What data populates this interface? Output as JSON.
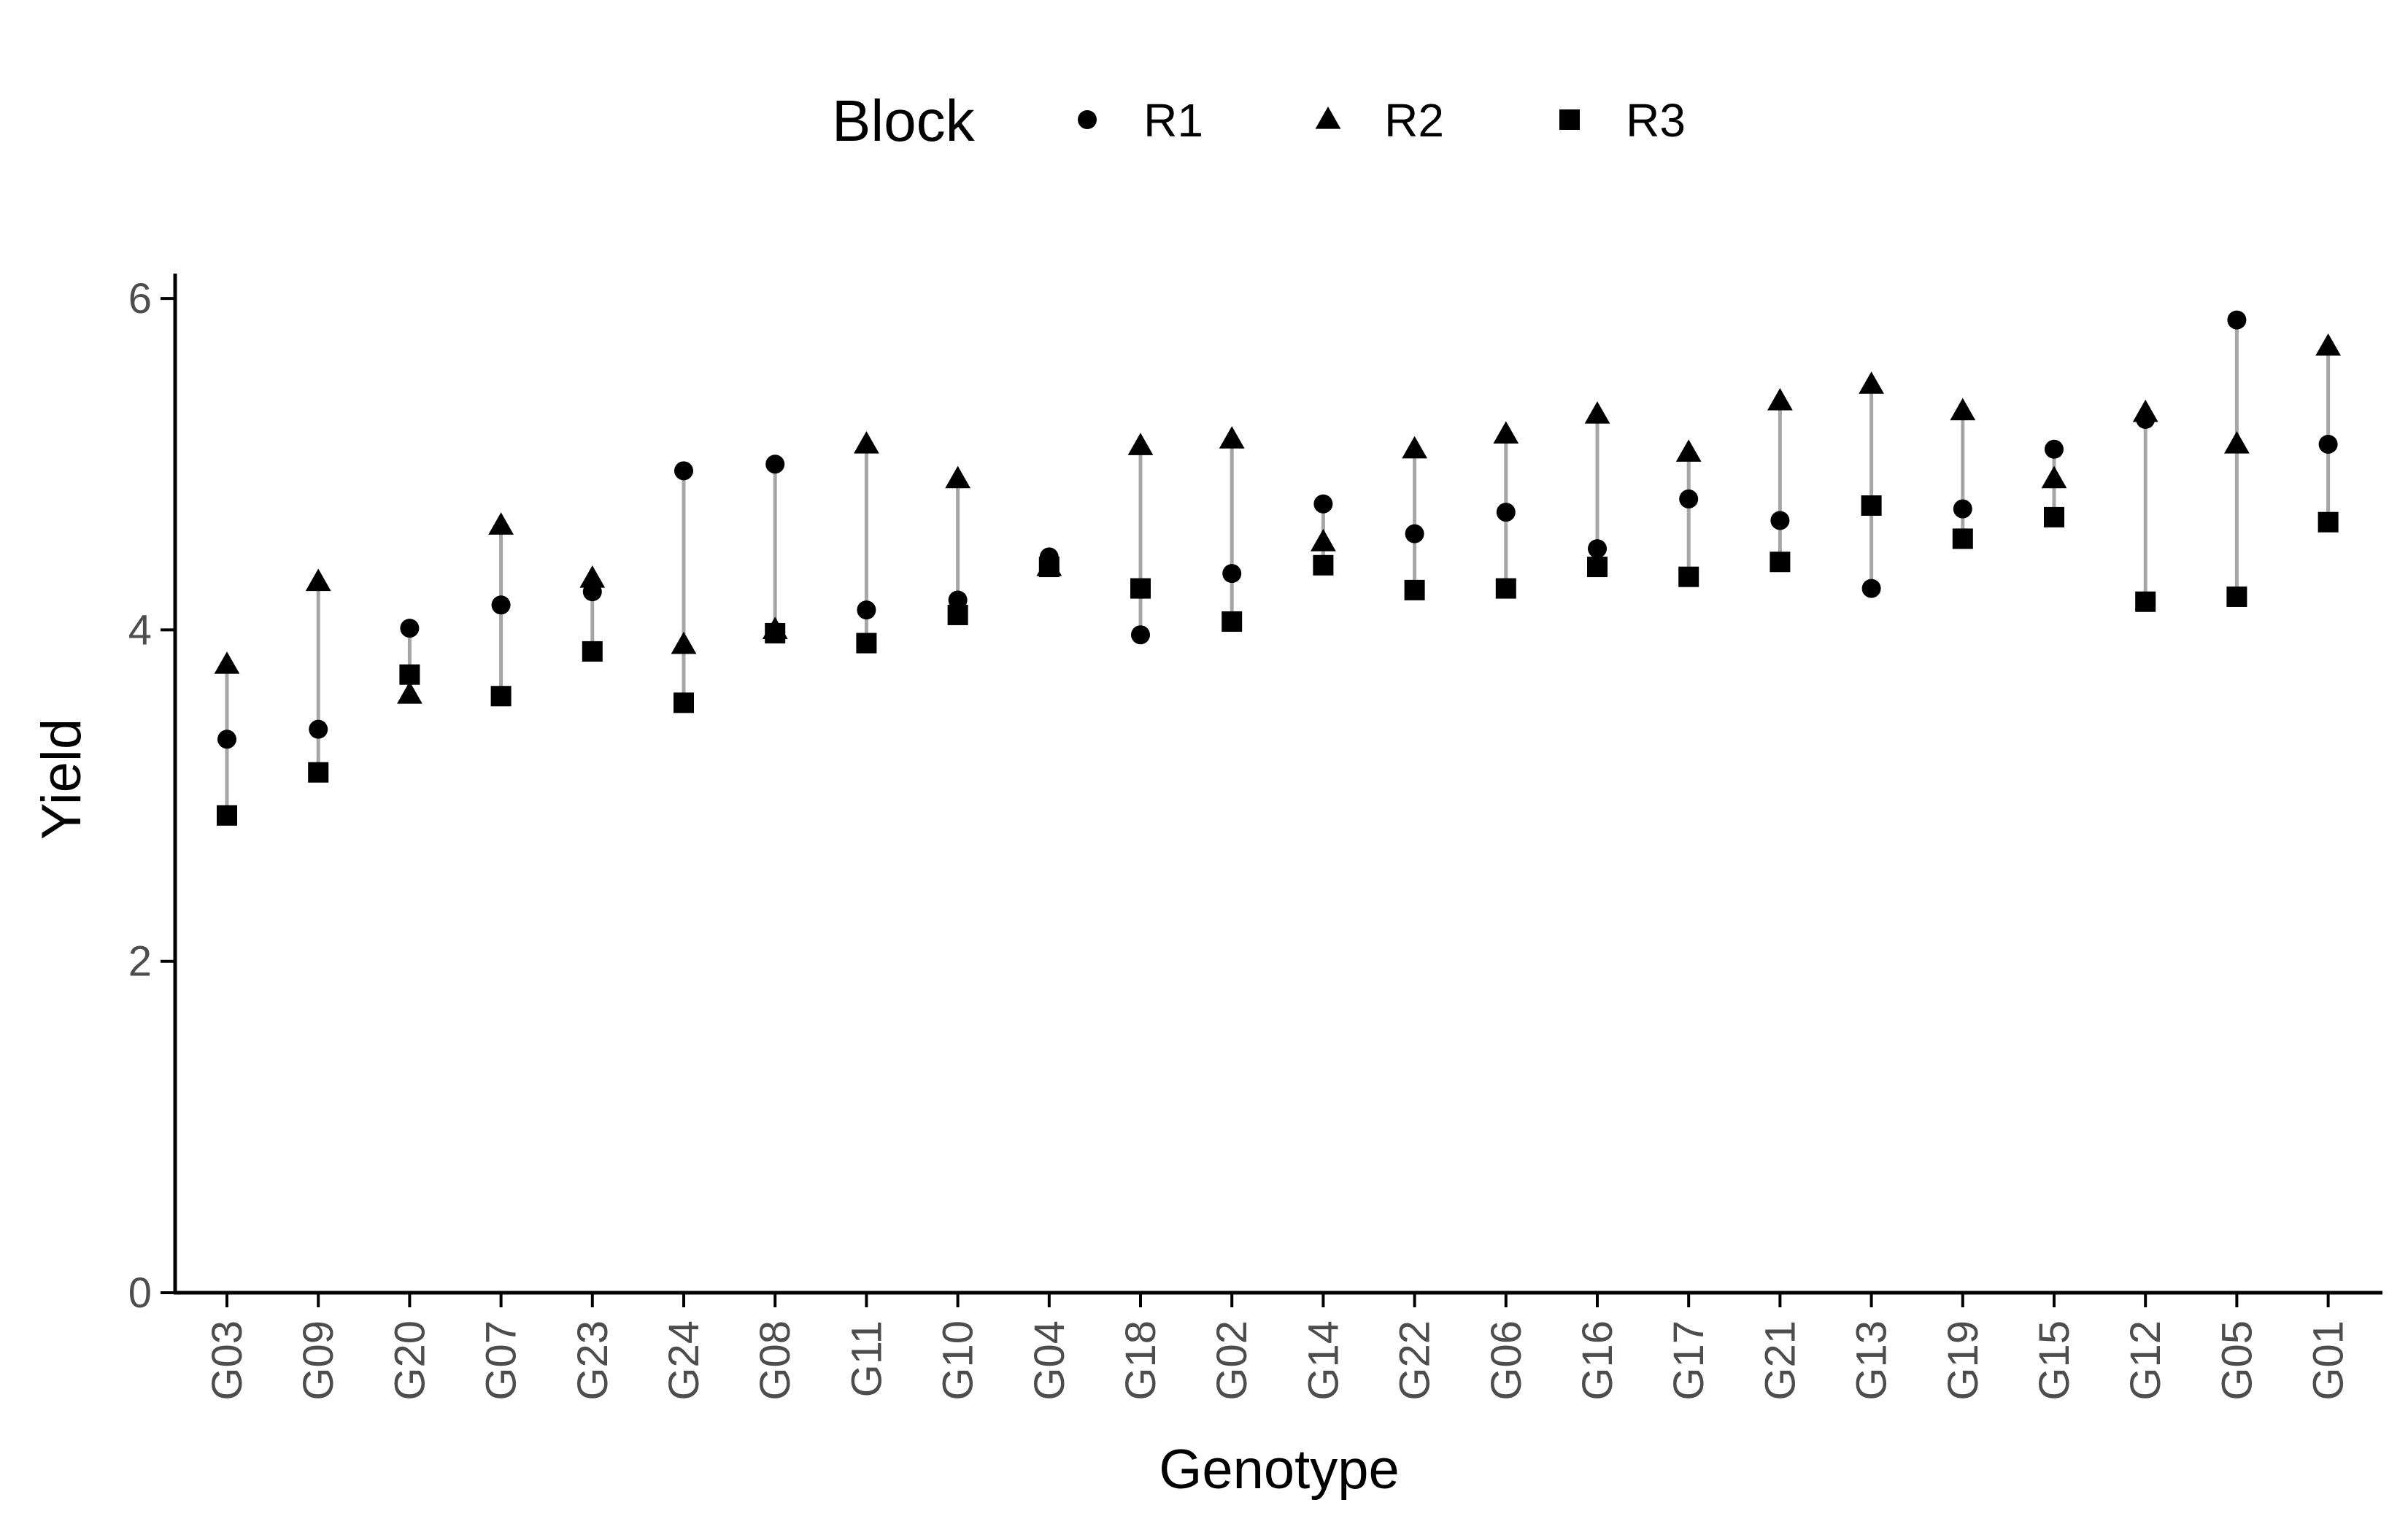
{
  "chart_data": {
    "type": "scatter",
    "xlabel": "Genotype",
    "ylabel": "Yield",
    "ylim": [
      0,
      6.15
    ],
    "yticks": [
      0,
      2,
      4,
      6
    ],
    "grid": false,
    "legend": {
      "title": "Block",
      "position": "top"
    },
    "categories": [
      "G03",
      "G09",
      "G20",
      "G07",
      "G23",
      "G24",
      "G08",
      "G11",
      "G10",
      "G04",
      "G18",
      "G02",
      "G14",
      "G22",
      "G06",
      "G16",
      "G17",
      "G21",
      "G13",
      "G19",
      "G15",
      "G12",
      "G05",
      "G01"
    ],
    "series": [
      {
        "name": "R1",
        "shape": "circle",
        "values": [
          3.34,
          3.4,
          4.01,
          4.15,
          4.23,
          4.96,
          5.0,
          4.12,
          4.18,
          4.44,
          3.97,
          4.34,
          4.76,
          4.58,
          4.71,
          4.49,
          4.79,
          4.66,
          4.25,
          4.73,
          5.09,
          5.27,
          5.87,
          5.12
        ]
      },
      {
        "name": "R2",
        "shape": "triangle",
        "values": [
          3.79,
          4.29,
          3.61,
          4.63,
          4.31,
          3.91,
          4.0,
          5.12,
          4.91,
          4.38,
          5.11,
          5.15,
          4.53,
          5.09,
          5.18,
          5.3,
          5.07,
          5.38,
          5.48,
          5.32,
          4.91,
          5.31,
          5.12,
          5.71
        ]
      },
      {
        "name": "R3",
        "shape": "square",
        "values": [
          2.88,
          3.14,
          3.73,
          3.6,
          3.87,
          3.56,
          3.98,
          3.92,
          4.09,
          4.38,
          4.25,
          4.05,
          4.39,
          4.24,
          4.25,
          4.38,
          4.32,
          4.41,
          4.75,
          4.55,
          4.68,
          4.17,
          4.2,
          4.65
        ]
      }
    ],
    "colors": {
      "points": "#000000",
      "range_line": "#a6a6a6",
      "axis": "#000000",
      "tick_label": "#4d4d4d"
    }
  }
}
